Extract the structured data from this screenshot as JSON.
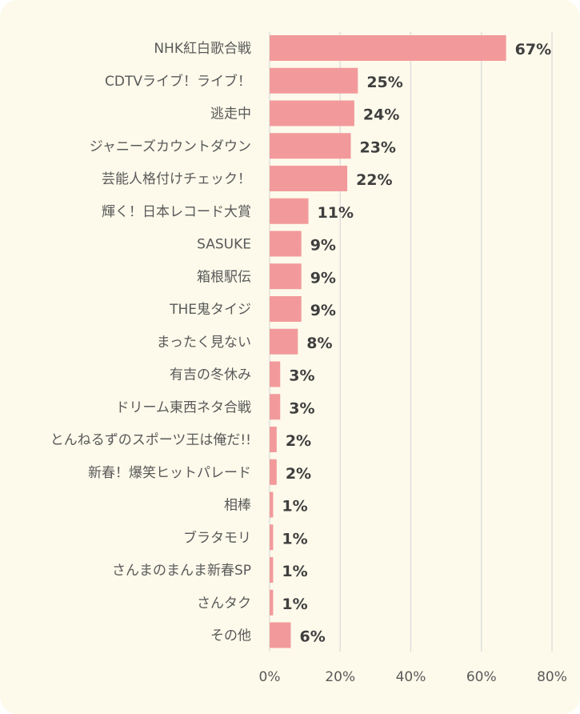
{
  "chart_data": {
    "type": "bar",
    "orientation": "horizontal",
    "categories": [
      "NHK紅白歌合戦",
      "CDTVライブ！ライブ！",
      "逃走中",
      "ジャニーズカウントダウン",
      "芸能人格付けチェック！",
      "輝く！日本レコード大賞",
      "SASUKE",
      "箱根駅伝",
      "THE鬼タイジ",
      "まったく見ない",
      "有吉の冬休み",
      "ドリーム東西ネタ合戦",
      "とんねるずのスポーツ王は俺だ!!",
      "新春！爆笑ヒットパレード",
      "相棒",
      "ブラタモリ",
      "さんまのまんま新春SP",
      "さんタク",
      "その他"
    ],
    "values": [
      67,
      25,
      24,
      23,
      22,
      11,
      9,
      9,
      9,
      8,
      3,
      3,
      2,
      2,
      1,
      1,
      1,
      1,
      6
    ],
    "value_labels": [
      "67%",
      "25%",
      "24%",
      "23%",
      "22%",
      "11%",
      "9%",
      "9%",
      "9%",
      "8%",
      "3%",
      "3%",
      "2%",
      "2%",
      "1%",
      "1%",
      "1%",
      "1%",
      "6%"
    ],
    "xlim": [
      0,
      80
    ],
    "xticks": [
      "0%",
      "20%",
      "40%",
      "60%",
      "80%"
    ],
    "bar_color": "#f29a9b",
    "background_color": "#fdfaeb",
    "grid": true
  }
}
